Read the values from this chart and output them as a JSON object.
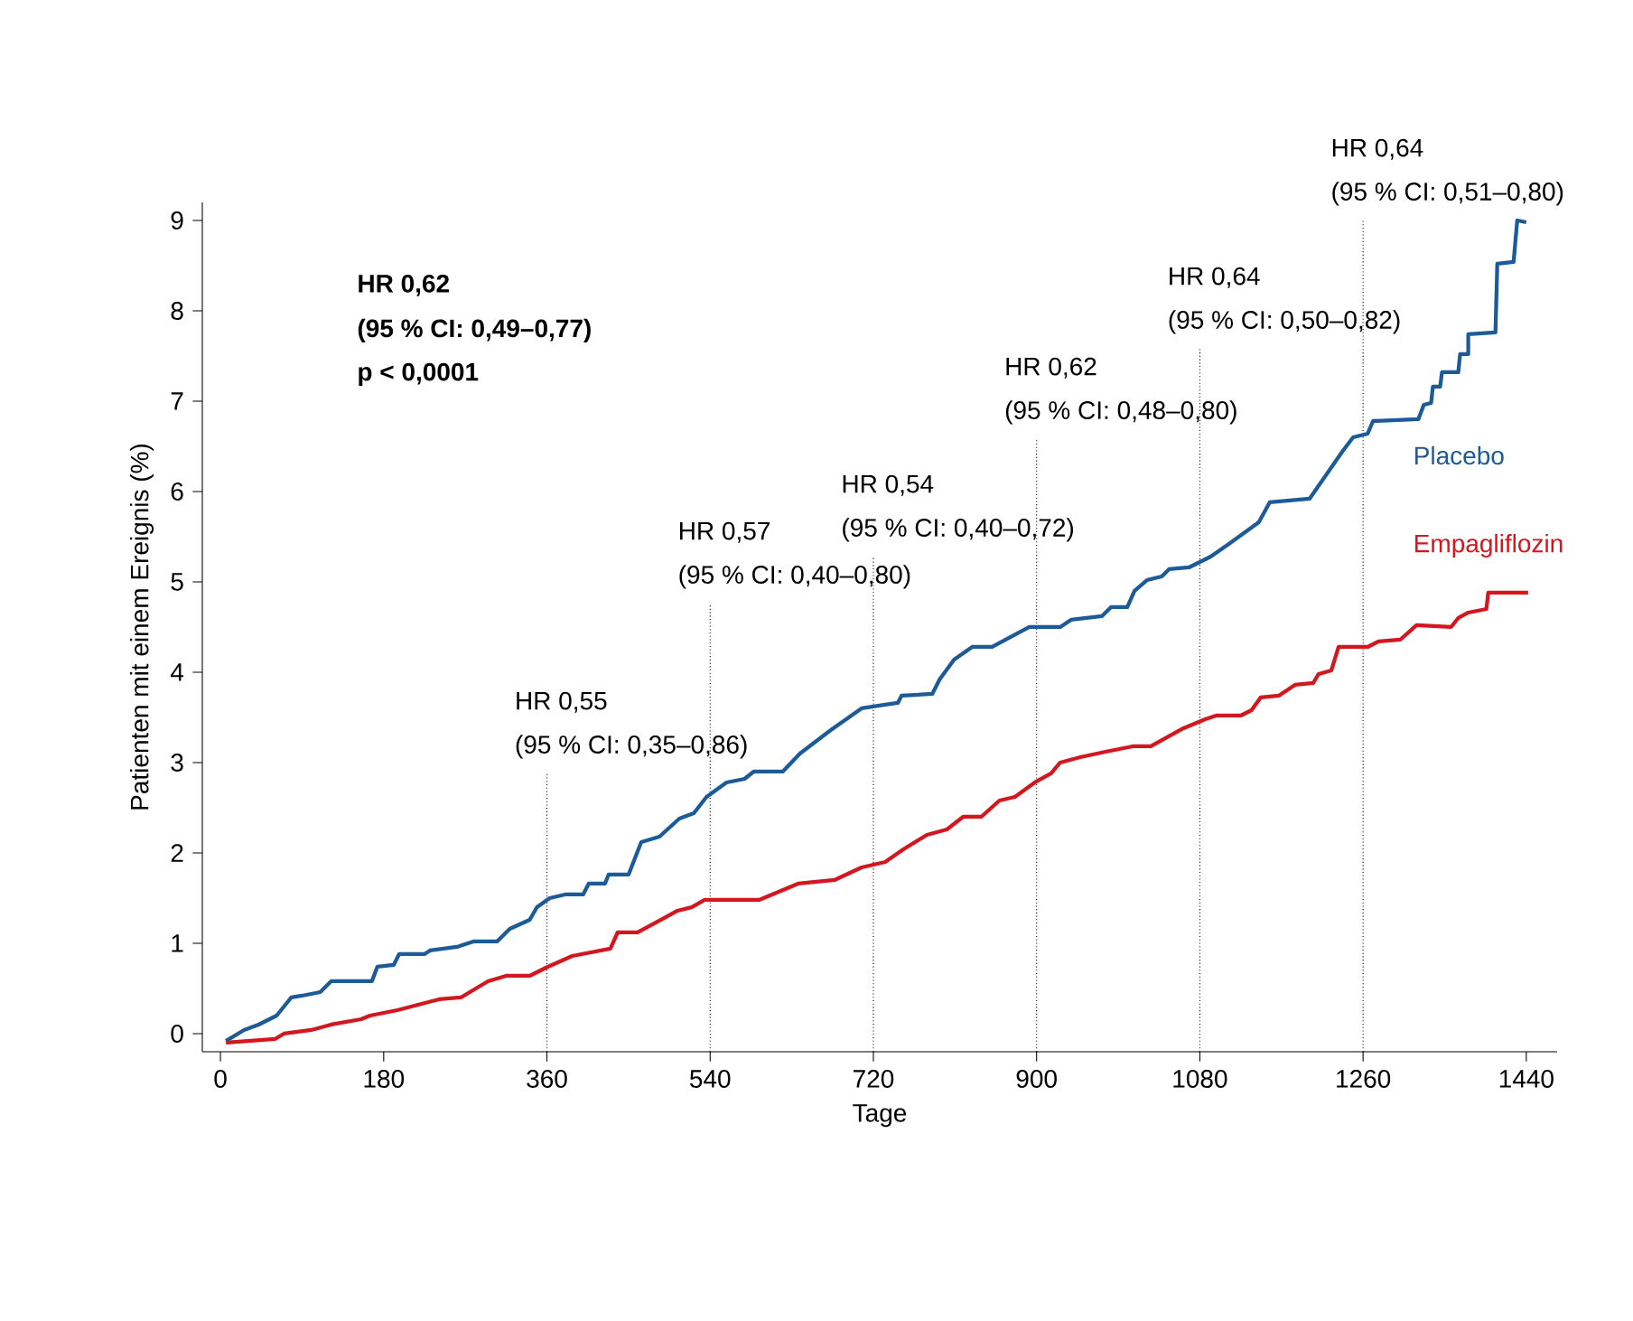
{
  "chart_data": {
    "type": "line",
    "xlabel": "Tage",
    "ylabel": "Patienten mit einem Ereignis (%)",
    "xlim": [
      -20,
      1474
    ],
    "ylim": [
      -0.2,
      9.2
    ],
    "xticks": [
      0,
      180,
      360,
      540,
      720,
      900,
      1080,
      1260,
      1440
    ],
    "yticks": [
      0,
      1,
      2,
      3,
      4,
      5,
      6,
      7,
      8,
      9
    ],
    "line_style": "solid",
    "marker": "none",
    "series": [
      {
        "name": "Placebo",
        "color": "#1c5b97",
        "x": [
          6,
          26,
          42,
          62,
          78,
          90,
          110,
          122,
          167,
          173,
          191,
          197,
          225,
          231,
          261,
          279,
          305,
          319,
          341,
          349,
          363,
          380,
          400,
          406,
          424,
          428,
          450,
          464,
          484,
          506,
          522,
          536,
          558,
          578,
          588,
          620,
          639,
          673,
          707,
          733,
          747,
          751,
          785,
          793,
          809,
          829,
          851,
          892,
          926,
          938,
          972,
          982,
          1000,
          1008,
          1022,
          1038,
          1046,
          1068,
          1092,
          1112,
          1145,
          1157,
          1201,
          1237,
          1249,
          1265,
          1271,
          1321,
          1327,
          1335,
          1337,
          1345,
          1347,
          1365,
          1367,
          1376,
          1376,
          1406,
          1408,
          1426,
          1430,
          1440
        ],
        "values": [
          -0.08,
          0.04,
          0.1,
          0.2,
          0.4,
          0.42,
          0.46,
          0.58,
          0.58,
          0.74,
          0.76,
          0.88,
          0.88,
          0.92,
          0.96,
          1.02,
          1.02,
          1.16,
          1.26,
          1.4,
          1.5,
          1.54,
          1.54,
          1.66,
          1.66,
          1.76,
          1.76,
          2.12,
          2.18,
          2.38,
          2.44,
          2.62,
          2.78,
          2.82,
          2.9,
          2.9,
          3.1,
          3.36,
          3.6,
          3.64,
          3.66,
          3.74,
          3.76,
          3.92,
          4.14,
          4.28,
          4.28,
          4.5,
          4.5,
          4.58,
          4.62,
          4.72,
          4.72,
          4.9,
          5.02,
          5.06,
          5.14,
          5.16,
          5.28,
          5.42,
          5.66,
          5.88,
          5.92,
          6.44,
          6.6,
          6.64,
          6.78,
          6.8,
          6.96,
          6.98,
          7.16,
          7.16,
          7.32,
          7.32,
          7.52,
          7.52,
          7.74,
          7.76,
          8.52,
          8.54,
          9.0,
          8.98
        ]
      },
      {
        "name": "Empagliflozin",
        "color": "#d4161e",
        "x": [
          6,
          60,
          70,
          100,
          122,
          155,
          165,
          195,
          241,
          265,
          295,
          315,
          341,
          361,
          388,
          430,
          438,
          460,
          504,
          520,
          534,
          594,
          637,
          677,
          707,
          733,
          753,
          779,
          801,
          819,
          839,
          859,
          876,
          898,
          916,
          926,
          948,
          976,
          1006,
          1026,
          1062,
          1086,
          1098,
          1125,
          1137,
          1147,
          1167,
          1185,
          1205,
          1211,
          1225,
          1233,
          1265,
          1277,
          1301,
          1319,
          1357,
          1365,
          1376,
          1396,
          1398,
          1442
        ],
        "values": [
          -0.1,
          -0.06,
          0,
          0.04,
          0.1,
          0.16,
          0.2,
          0.26,
          0.38,
          0.4,
          0.58,
          0.64,
          0.64,
          0.74,
          0.86,
          0.94,
          1.12,
          1.12,
          1.36,
          1.4,
          1.48,
          1.48,
          1.66,
          1.7,
          1.84,
          1.9,
          2.04,
          2.2,
          2.26,
          2.4,
          2.4,
          2.58,
          2.62,
          2.78,
          2.88,
          3.0,
          3.06,
          3.12,
          3.18,
          3.18,
          3.38,
          3.48,
          3.52,
          3.52,
          3.58,
          3.72,
          3.74,
          3.86,
          3.88,
          3.98,
          4.02,
          4.28,
          4.28,
          4.34,
          4.36,
          4.52,
          4.5,
          4.6,
          4.66,
          4.7,
          4.88,
          4.88
        ]
      }
    ],
    "ref_lines": [
      {
        "axis": "x",
        "value": 360,
        "line_style": "dotted"
      },
      {
        "axis": "x",
        "value": 540,
        "line_style": "dotted"
      },
      {
        "axis": "x",
        "value": 720,
        "line_style": "dotted"
      },
      {
        "axis": "x",
        "value": 900,
        "line_style": "dotted"
      },
      {
        "axis": "x",
        "value": 1080,
        "line_style": "dotted"
      },
      {
        "axis": "x",
        "value": 1260,
        "line_style": "dotted"
      }
    ],
    "annotations": [
      "HR 0,62",
      "(95 % CI: 0,49–0,77)",
      "p < 0,0001",
      {
        "text": "HR 0,55",
        "x": 360,
        "y": 2.88
      },
      {
        "text": "(95 % CI: 0,35–0,86)",
        "x": 360,
        "y": 2.88
      },
      {
        "text": "HR 0,57",
        "x": 540,
        "y": 4.76
      },
      {
        "text": "(95 % CI: 0,40–0,80)",
        "x": 540,
        "y": 4.76
      },
      {
        "text": "HR 0,54",
        "x": 720,
        "y": 5.28
      },
      {
        "text": "(95 % CI: 0,40–0,72)",
        "x": 720,
        "y": 5.28
      },
      {
        "text": "HR 0,62",
        "x": 900,
        "y": 6.58
      },
      {
        "text": "(95 % CI: 0,48–0,80)",
        "x": 900,
        "y": 6.58
      },
      {
        "text": "HR 0,64",
        "x": 1080,
        "y": 7.58
      },
      {
        "text": "(95 % CI: 0,50–0,82)",
        "x": 1080,
        "y": 7.58
      },
      {
        "text": "HR 0,64",
        "x": 1260,
        "y": 9.0
      },
      {
        "text": "(95 % CI: 0,51–0,80)",
        "x": 1260,
        "y": 9.0
      }
    ]
  }
}
